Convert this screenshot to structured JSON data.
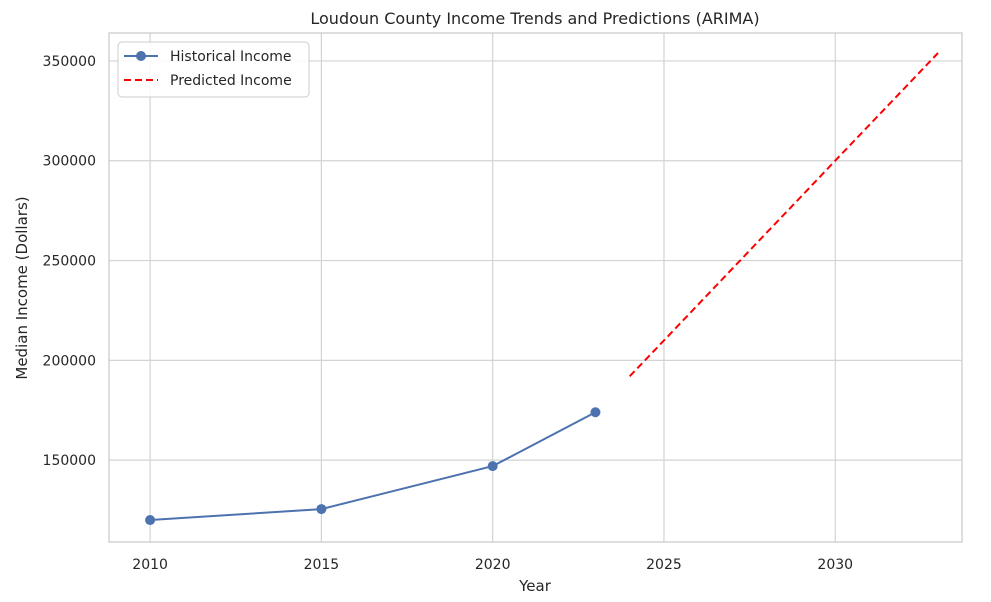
{
  "chart_data": {
    "type": "line",
    "title": "Loudoun County Income Trends and Predictions (ARIMA)",
    "xlabel": "Year",
    "ylabel": "Median Income (Dollars)",
    "xlim": [
      2008.8,
      2033.7
    ],
    "ylim": [
      109000,
      364000
    ],
    "xticks": [
      2010,
      2015,
      2020,
      2025,
      2030
    ],
    "yticks": [
      150000,
      200000,
      250000,
      300000,
      350000
    ],
    "grid": true,
    "legend_position": "top-left",
    "series": [
      {
        "name": "Historical Income",
        "style": "solid-marker",
        "color": "#4c72b0",
        "x": [
          2010,
          2015,
          2020,
          2023
        ],
        "y": [
          120000,
          125500,
          147000,
          174000
        ]
      },
      {
        "name": "Predicted Income",
        "style": "dashed",
        "color": "#ff0000",
        "x": [
          2024,
          2025,
          2026,
          2027,
          2028,
          2029,
          2030,
          2031,
          2032,
          2033
        ],
        "y": [
          192000,
          210000,
          228000,
          246000,
          264000,
          282000,
          300000,
          318000,
          336000,
          354000
        ]
      }
    ]
  }
}
